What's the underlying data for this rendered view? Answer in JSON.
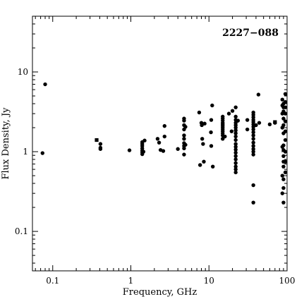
{
  "chart_data": {
    "type": "scatter",
    "annotation": "2227−088",
    "xlabel": "Frequency, GHz",
    "ylabel": "Flux Density, Jy",
    "x_scale": "log",
    "y_scale": "log",
    "xlim": [
      0.055,
      100
    ],
    "ylim": [
      0.032,
      50
    ],
    "x_ticks": [
      {
        "value": 0.1,
        "label": "0.1"
      },
      {
        "value": 1,
        "label": "1"
      },
      {
        "value": 10,
        "label": "10"
      },
      {
        "value": 100,
        "label": "100"
      }
    ],
    "y_ticks": [
      {
        "value": 0.1,
        "label": "0.1"
      },
      {
        "value": 1,
        "label": "1"
      },
      {
        "value": 10,
        "label": "10"
      }
    ],
    "grid": false,
    "legend": "none",
    "series": [
      {
        "marker": "circle",
        "points": [
          [
            0.074,
            0.96
          ],
          [
            0.08,
            7.0
          ],
          [
            0.408,
            1.25
          ],
          [
            0.408,
            1.12
          ],
          [
            0.408,
            1.08
          ],
          [
            0.96,
            1.04
          ],
          [
            1.4,
            0.93
          ],
          [
            1.4,
            0.98
          ],
          [
            1.4,
            1.03
          ],
          [
            1.4,
            1.1
          ],
          [
            1.4,
            1.18
          ],
          [
            1.4,
            1.25
          ],
          [
            1.4,
            1.32
          ],
          [
            1.45,
            1.0
          ],
          [
            1.5,
            1.38
          ],
          [
            2.2,
            1.45
          ],
          [
            2.3,
            1.3
          ],
          [
            2.4,
            1.05
          ],
          [
            2.6,
            1.02
          ],
          [
            2.7,
            2.1
          ],
          [
            2.7,
            1.55
          ],
          [
            4.0,
            1.08
          ],
          [
            4.8,
            0.92
          ],
          [
            4.8,
            1.1
          ],
          [
            4.8,
            1.18
          ],
          [
            4.8,
            1.28
          ],
          [
            4.8,
            1.45
          ],
          [
            4.8,
            1.6
          ],
          [
            4.8,
            1.9
          ],
          [
            4.8,
            2.15
          ],
          [
            4.8,
            2.45
          ],
          [
            4.8,
            2.6
          ],
          [
            5.0,
            1.22
          ],
          [
            5.0,
            2.05
          ],
          [
            7.5,
            3.1
          ],
          [
            7.7,
            0.68
          ],
          [
            8.0,
            2.3
          ],
          [
            8.1,
            2.15
          ],
          [
            8.2,
            1.45
          ],
          [
            8.4,
            1.25
          ],
          [
            8.6,
            0.75
          ],
          [
            8.8,
            2.25
          ],
          [
            10.6,
            1.75
          ],
          [
            10.7,
            2.5
          ],
          [
            10.7,
            1.18
          ],
          [
            11.0,
            3.8
          ],
          [
            11.2,
            0.65
          ],
          [
            15.0,
            1.45
          ],
          [
            15.0,
            1.6
          ],
          [
            15.0,
            1.7
          ],
          [
            15.0,
            1.8
          ],
          [
            15.0,
            1.9
          ],
          [
            15.0,
            2.0
          ],
          [
            15.0,
            2.1
          ],
          [
            15.0,
            2.2
          ],
          [
            15.0,
            2.3
          ],
          [
            15.0,
            2.45
          ],
          [
            15.0,
            2.6
          ],
          [
            15.0,
            2.75
          ],
          [
            16.0,
            1.55
          ],
          [
            18.0,
            3.0
          ],
          [
            19.5,
            1.8
          ],
          [
            20.0,
            3.25
          ],
          [
            22.0,
            0.55
          ],
          [
            22.0,
            0.6
          ],
          [
            22.0,
            0.65
          ],
          [
            22.0,
            0.72
          ],
          [
            22.0,
            0.8
          ],
          [
            22.0,
            0.88
          ],
          [
            22.0,
            0.97
          ],
          [
            22.0,
            1.06
          ],
          [
            22.0,
            1.15
          ],
          [
            22.0,
            1.25
          ],
          [
            22.0,
            1.4
          ],
          [
            22.0,
            1.55
          ],
          [
            22.0,
            1.7
          ],
          [
            22.0,
            1.85
          ],
          [
            22.0,
            2.0
          ],
          [
            22.0,
            2.15
          ],
          [
            22.0,
            2.3
          ],
          [
            22.0,
            2.5
          ],
          [
            22.0,
            2.75
          ],
          [
            22.0,
            3.6
          ],
          [
            23.5,
            2.45
          ],
          [
            31.0,
            1.9
          ],
          [
            31.0,
            2.5
          ],
          [
            37.0,
            0.23
          ],
          [
            37.0,
            0.38
          ],
          [
            37.0,
            0.92
          ],
          [
            37.0,
            1.0
          ],
          [
            37.0,
            1.08
          ],
          [
            37.0,
            1.18
          ],
          [
            37.0,
            1.3
          ],
          [
            37.0,
            1.45
          ],
          [
            37.0,
            1.6
          ],
          [
            37.0,
            1.75
          ],
          [
            37.0,
            1.9
          ],
          [
            37.0,
            2.05
          ],
          [
            37.0,
            2.2
          ],
          [
            37.0,
            2.35
          ],
          [
            37.0,
            2.5
          ],
          [
            37.0,
            2.7
          ],
          [
            37.0,
            2.9
          ],
          [
            37.0,
            3.1
          ],
          [
            40.0,
            2.15
          ],
          [
            43.0,
            5.2
          ],
          [
            44.0,
            2.3
          ],
          [
            60.0,
            2.2
          ],
          [
            70.0,
            2.3
          ],
          [
            87.0,
            0.3
          ],
          [
            87.0,
            0.5
          ],
          [
            87.0,
            1.15
          ],
          [
            87.0,
            2.0
          ],
          [
            87.0,
            3.0
          ],
          [
            87.0,
            3.8
          ],
          [
            87.0,
            4.5
          ],
          [
            90.0,
            0.23
          ],
          [
            90.0,
            0.35
          ],
          [
            90.0,
            0.45
          ],
          [
            90.0,
            0.65
          ],
          [
            90.0,
            0.75
          ],
          [
            90.0,
            0.88
          ],
          [
            90.0,
            1.05
          ],
          [
            90.0,
            1.2
          ],
          [
            90.0,
            1.7
          ],
          [
            90.0,
            2.15
          ],
          [
            90.0,
            2.6
          ],
          [
            90.0,
            3.2
          ],
          [
            90.0,
            3.6
          ],
          [
            90.0,
            4.0
          ],
          [
            95.0,
            0.55
          ],
          [
            95.0,
            0.75
          ],
          [
            95.0,
            1.0
          ],
          [
            95.0,
            1.4
          ],
          [
            95.0,
            1.8
          ],
          [
            95.0,
            2.4
          ],
          [
            95.0,
            3.0
          ],
          [
            95.0,
            3.6
          ],
          [
            95.0,
            4.2
          ],
          [
            95.0,
            5.3
          ]
        ]
      },
      {
        "marker": "square",
        "points": [
          [
            0.365,
            1.4
          ],
          [
            70.0,
            2.35
          ]
        ]
      }
    ]
  }
}
